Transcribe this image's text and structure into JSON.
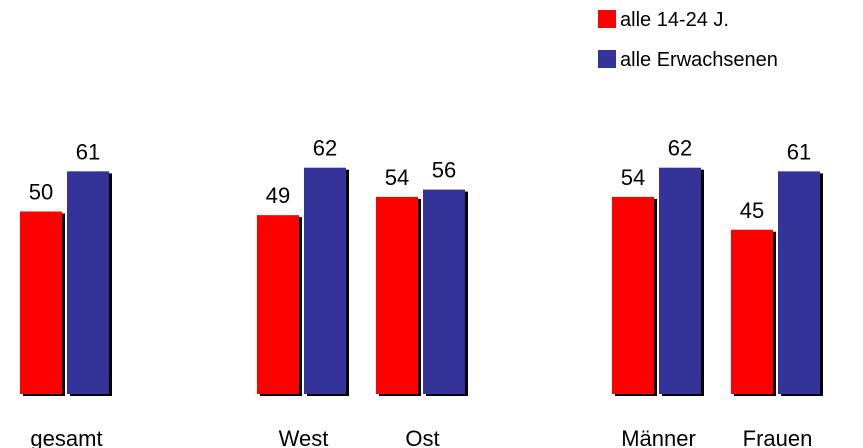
{
  "chart_data": {
    "type": "bar",
    "categories": [
      "gesamt",
      "West",
      "Ost",
      "Männer",
      "Frauen"
    ],
    "series": [
      {
        "name": "alle 14-24 J.",
        "values": [
          50,
          49,
          54,
          54,
          45
        ],
        "color": "#ff0000"
      },
      {
        "name": "alle Erwachsenen",
        "values": [
          61,
          62,
          56,
          62,
          61
        ],
        "color": "#333399"
      }
    ],
    "ylim": [
      0,
      100
    ],
    "grid": false,
    "legend_position": "top-right",
    "data_labels": true
  }
}
